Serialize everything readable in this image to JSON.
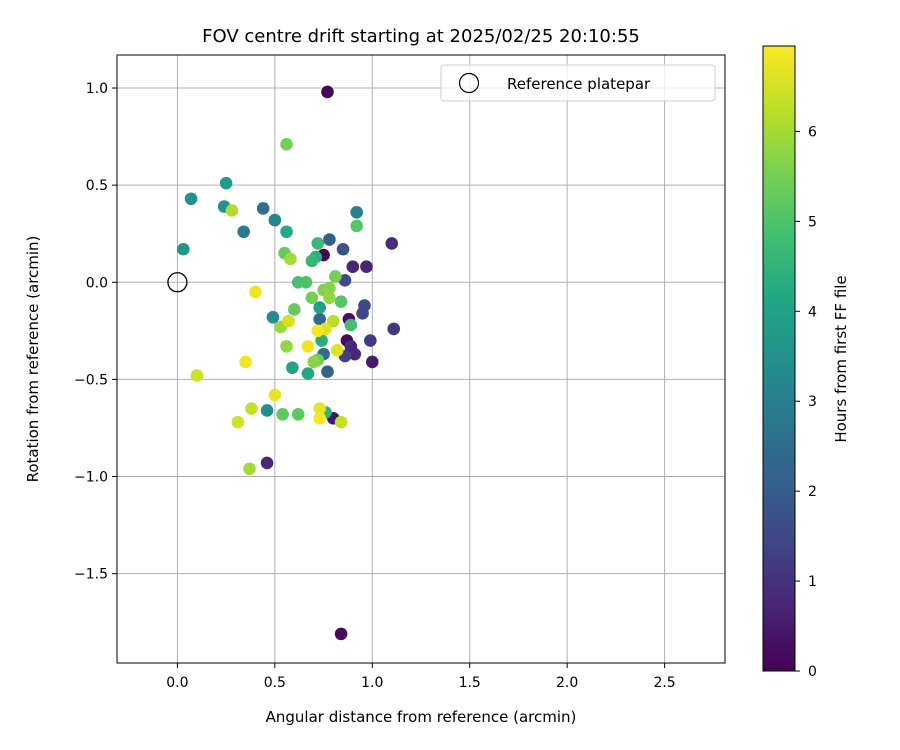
{
  "chart_data": {
    "type": "scatter",
    "title": "FOV centre drift starting at 2025/02/25 20:10:55",
    "xlabel": "Angular distance from reference (arcmin)",
    "ylabel": "Rotation from reference (arcmin)",
    "xlim": [
      -0.31,
      2.81
    ],
    "ylim": [
      -1.96,
      1.17
    ],
    "xticks": [
      0.0,
      0.5,
      1.0,
      1.5,
      2.0,
      2.5
    ],
    "xtick_labels": [
      "0.0",
      "0.5",
      "1.0",
      "1.5",
      "2.0",
      "2.5"
    ],
    "yticks": [
      1.0,
      0.5,
      0.0,
      -0.5,
      -1.0,
      -1.5
    ],
    "ytick_labels": [
      "1.0",
      "0.5",
      "0.0",
      "−0.5",
      "−1.0",
      "−1.5"
    ],
    "grid": true,
    "legend": {
      "location": "upper right",
      "entries": [
        {
          "label": "Reference platepar",
          "marker": "open-circle",
          "x": 0.0,
          "y": 0.0
        }
      ]
    },
    "colorbar": {
      "label": "Hours from first FF file",
      "colormap": "viridis",
      "range": [
        0,
        6.95
      ],
      "ticks": [
        0,
        1,
        2,
        3,
        4,
        5,
        6
      ],
      "tick_labels": [
        "0",
        "1",
        "2",
        "3",
        "4",
        "5",
        "6"
      ]
    },
    "points": [
      {
        "x": 0.77,
        "y": 0.98,
        "t": 0.1
      },
      {
        "x": 0.75,
        "y": 0.14,
        "t": 0.1
      },
      {
        "x": 0.87,
        "y": -0.3,
        "t": 0.2
      },
      {
        "x": 0.88,
        "y": -0.19,
        "t": 0.3
      },
      {
        "x": 0.89,
        "y": -0.36,
        "t": 0.3
      },
      {
        "x": 0.8,
        "y": -0.7,
        "t": 0.4
      },
      {
        "x": 0.84,
        "y": -1.81,
        "t": 0.2
      },
      {
        "x": 1.0,
        "y": -0.41,
        "t": 0.5
      },
      {
        "x": 0.97,
        "y": 0.08,
        "t": 0.7
      },
      {
        "x": 0.9,
        "y": 0.08,
        "t": 0.8
      },
      {
        "x": 0.89,
        "y": -0.33,
        "t": 0.8
      },
      {
        "x": 0.91,
        "y": -0.37,
        "t": 0.8
      },
      {
        "x": 0.46,
        "y": -0.93,
        "t": 0.8
      },
      {
        "x": 1.1,
        "y": 0.2,
        "t": 0.9
      },
      {
        "x": 1.11,
        "y": -0.24,
        "t": 1.1
      },
      {
        "x": 0.99,
        "y": -0.3,
        "t": 1.2
      },
      {
        "x": 0.86,
        "y": -0.38,
        "t": 1.3
      },
      {
        "x": 0.95,
        "y": -0.16,
        "t": 1.4
      },
      {
        "x": 0.96,
        "y": -0.12,
        "t": 1.5
      },
      {
        "x": 0.86,
        "y": 0.01,
        "t": 1.6
      },
      {
        "x": 0.85,
        "y": 0.17,
        "t": 1.8
      },
      {
        "x": 0.78,
        "y": 0.22,
        "t": 2.1
      },
      {
        "x": 0.77,
        "y": -0.46,
        "t": 2.2
      },
      {
        "x": 0.73,
        "y": -0.19,
        "t": 2.3
      },
      {
        "x": 0.75,
        "y": -0.37,
        "t": 2.4
      },
      {
        "x": 0.44,
        "y": 0.38,
        "t": 2.5
      },
      {
        "x": 0.34,
        "y": 0.26,
        "t": 2.8
      },
      {
        "x": 0.92,
        "y": 0.36,
        "t": 3.0
      },
      {
        "x": 0.5,
        "y": 0.32,
        "t": 3.2
      },
      {
        "x": 0.49,
        "y": -0.18,
        "t": 3.3
      },
      {
        "x": 0.46,
        "y": -0.66,
        "t": 3.4
      },
      {
        "x": 0.24,
        "y": 0.39,
        "t": 3.5
      },
      {
        "x": 0.07,
        "y": 0.43,
        "t": 3.6
      },
      {
        "x": 0.03,
        "y": 0.17,
        "t": 3.7
      },
      {
        "x": 0.25,
        "y": 0.51,
        "t": 3.8
      },
      {
        "x": 0.73,
        "y": -0.13,
        "t": 3.9
      },
      {
        "x": 0.59,
        "y": -0.44,
        "t": 4.0
      },
      {
        "x": 0.67,
        "y": -0.47,
        "t": 4.1
      },
      {
        "x": 0.56,
        "y": 0.26,
        "t": 4.2
      },
      {
        "x": 0.74,
        "y": -0.3,
        "t": 4.3
      },
      {
        "x": 0.71,
        "y": 0.13,
        "t": 4.4
      },
      {
        "x": 0.76,
        "y": -0.67,
        "t": 4.5
      },
      {
        "x": 0.69,
        "y": 0.11,
        "t": 4.6
      },
      {
        "x": 0.72,
        "y": 0.2,
        "t": 4.7
      },
      {
        "x": 0.89,
        "y": -0.22,
        "t": 4.8
      },
      {
        "x": 0.62,
        "y": 0.0,
        "t": 4.9
      },
      {
        "x": 0.66,
        "y": 0.0,
        "t": 5.0
      },
      {
        "x": 0.92,
        "y": 0.29,
        "t": 5.1
      },
      {
        "x": 0.84,
        "y": -0.1,
        "t": 5.1
      },
      {
        "x": 0.54,
        "y": -0.68,
        "t": 5.2
      },
      {
        "x": 0.62,
        "y": -0.68,
        "t": 5.2
      },
      {
        "x": 0.55,
        "y": 0.15,
        "t": 5.3
      },
      {
        "x": 0.6,
        "y": -0.14,
        "t": 5.3
      },
      {
        "x": 0.72,
        "y": -0.4,
        "t": 5.4
      },
      {
        "x": 0.69,
        "y": -0.08,
        "t": 5.5
      },
      {
        "x": 0.81,
        "y": 0.03,
        "t": 5.5
      },
      {
        "x": 0.56,
        "y": 0.71,
        "t": 5.5
      },
      {
        "x": 0.75,
        "y": -0.04,
        "t": 5.6
      },
      {
        "x": 0.78,
        "y": -0.03,
        "t": 5.7
      },
      {
        "x": 0.7,
        "y": -0.41,
        "t": 5.7
      },
      {
        "x": 0.56,
        "y": -0.33,
        "t": 5.8
      },
      {
        "x": 0.78,
        "y": -0.08,
        "t": 5.8
      },
      {
        "x": 0.53,
        "y": -0.23,
        "t": 5.9
      },
      {
        "x": 0.58,
        "y": 0.12,
        "t": 6.0
      },
      {
        "x": 0.37,
        "y": -0.96,
        "t": 6.0
      },
      {
        "x": 0.28,
        "y": 0.37,
        "t": 6.1
      },
      {
        "x": 0.8,
        "y": -0.2,
        "t": 6.2
      },
      {
        "x": 0.38,
        "y": -0.65,
        "t": 6.3
      },
      {
        "x": 0.84,
        "y": -0.72,
        "t": 6.3
      },
      {
        "x": 0.1,
        "y": -0.48,
        "t": 6.4
      },
      {
        "x": 0.57,
        "y": -0.2,
        "t": 6.5
      },
      {
        "x": 0.31,
        "y": -0.72,
        "t": 6.5
      },
      {
        "x": 0.76,
        "y": -0.24,
        "t": 6.6
      },
      {
        "x": 0.82,
        "y": -0.35,
        "t": 6.6
      },
      {
        "x": 0.5,
        "y": -0.58,
        "t": 6.7
      },
      {
        "x": 0.73,
        "y": -0.65,
        "t": 6.7
      },
      {
        "x": 0.35,
        "y": -0.41,
        "t": 6.8
      },
      {
        "x": 0.4,
        "y": -0.05,
        "t": 6.8
      },
      {
        "x": 0.67,
        "y": -0.33,
        "t": 6.8
      },
      {
        "x": 0.72,
        "y": -0.25,
        "t": 6.9
      },
      {
        "x": 0.73,
        "y": -0.7,
        "t": 6.9
      }
    ]
  }
}
